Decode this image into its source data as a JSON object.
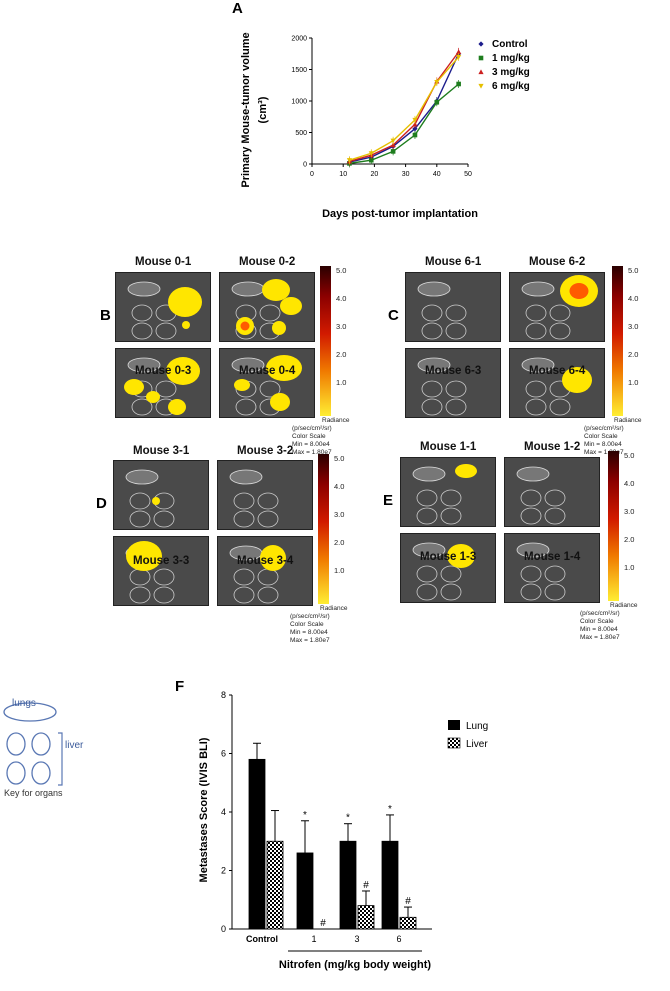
{
  "panel_a": {
    "letter": "A",
    "chart_data": {
      "type": "line",
      "x": [
        12,
        19,
        26,
        33,
        40,
        47
      ],
      "series": [
        {
          "name": "Control",
          "color": "#1c1c8c",
          "marker": "diamond",
          "values": [
            30,
            110,
            280,
            560,
            1000,
            1750
          ]
        },
        {
          "name": "1 mg/kg",
          "color": "#1e7d1e",
          "marker": "square",
          "values": [
            10,
            60,
            200,
            460,
            980,
            1270
          ]
        },
        {
          "name": "3 mg/kg",
          "color": "#cc2020",
          "marker": "triangle",
          "values": [
            40,
            140,
            300,
            630,
            1310,
            1780
          ]
        },
        {
          "name": "6 mg/kg",
          "color": "#e6c000",
          "marker": "triangle-down",
          "values": [
            60,
            170,
            370,
            700,
            1300,
            1700
          ]
        }
      ],
      "xlabel": "Days post-tumor implantation",
      "ylabel": "Primary Mouse-tumor volume",
      "ylabel2": "(cm³)",
      "xlim": [
        0,
        50
      ],
      "ylim": [
        0,
        2000
      ],
      "xticks": [
        "0",
        "10",
        "20",
        "30",
        "40",
        "50"
      ],
      "yticks": [
        "0",
        "500",
        "1000",
        "1500",
        "2000"
      ]
    }
  },
  "panels": [
    {
      "letter": "B",
      "labels": [
        "Mouse 0-1",
        "Mouse 0-2",
        "Mouse 0-3",
        "Mouse 0-4"
      ]
    },
    {
      "letter": "C",
      "labels": [
        "Mouse 6-1",
        "Mouse 6-2",
        "Mouse 6-3",
        "Mouse 6-4"
      ]
    },
    {
      "letter": "D",
      "labels": [
        "Mouse 3-1",
        "Mouse 3-2",
        "Mouse 3-3",
        "Mouse 3-4"
      ]
    },
    {
      "letter": "E",
      "labels": [
        "Mouse 1-1",
        "Mouse 1-2",
        "Mouse 1-3",
        "Mouse 1-4"
      ]
    }
  ],
  "scale": {
    "ticks": [
      "5.0",
      "4.0",
      "3.0",
      "2.0",
      "1.0"
    ],
    "radiance_label": "Radiance",
    "radiance_unit": "(p/sec/cm²/sr)",
    "color_scale": "Color Scale",
    "min": "Min = 8.00e4",
    "max": "Max = 1.80e7"
  },
  "key": {
    "lungs": "lungs",
    "liver": "liver",
    "caption": "Key for organs"
  },
  "panel_f": {
    "letter": "F",
    "chart_data": {
      "type": "bar",
      "categories": [
        "Control",
        "1",
        "3",
        "6"
      ],
      "series": [
        {
          "name": "Lung",
          "values": [
            5.8,
            2.6,
            3.0,
            3.0
          ],
          "errors": [
            0.55,
            1.1,
            0.6,
            0.9
          ],
          "annotations": [
            "",
            "*",
            "*",
            "*"
          ]
        },
        {
          "name": "Liver",
          "values": [
            3.0,
            0.0,
            0.8,
            0.4
          ],
          "errors": [
            1.05,
            0.0,
            0.5,
            0.35
          ],
          "annotations": [
            "",
            "#",
            "#",
            "#"
          ]
        }
      ],
      "ylabel": "Metastases Score (IVIS BLI)",
      "xlabel": "Nitrofen (mg/kg body weight)",
      "ylim": [
        0,
        8
      ],
      "yticks": [
        "0",
        "2",
        "4",
        "6",
        "8"
      ]
    }
  }
}
